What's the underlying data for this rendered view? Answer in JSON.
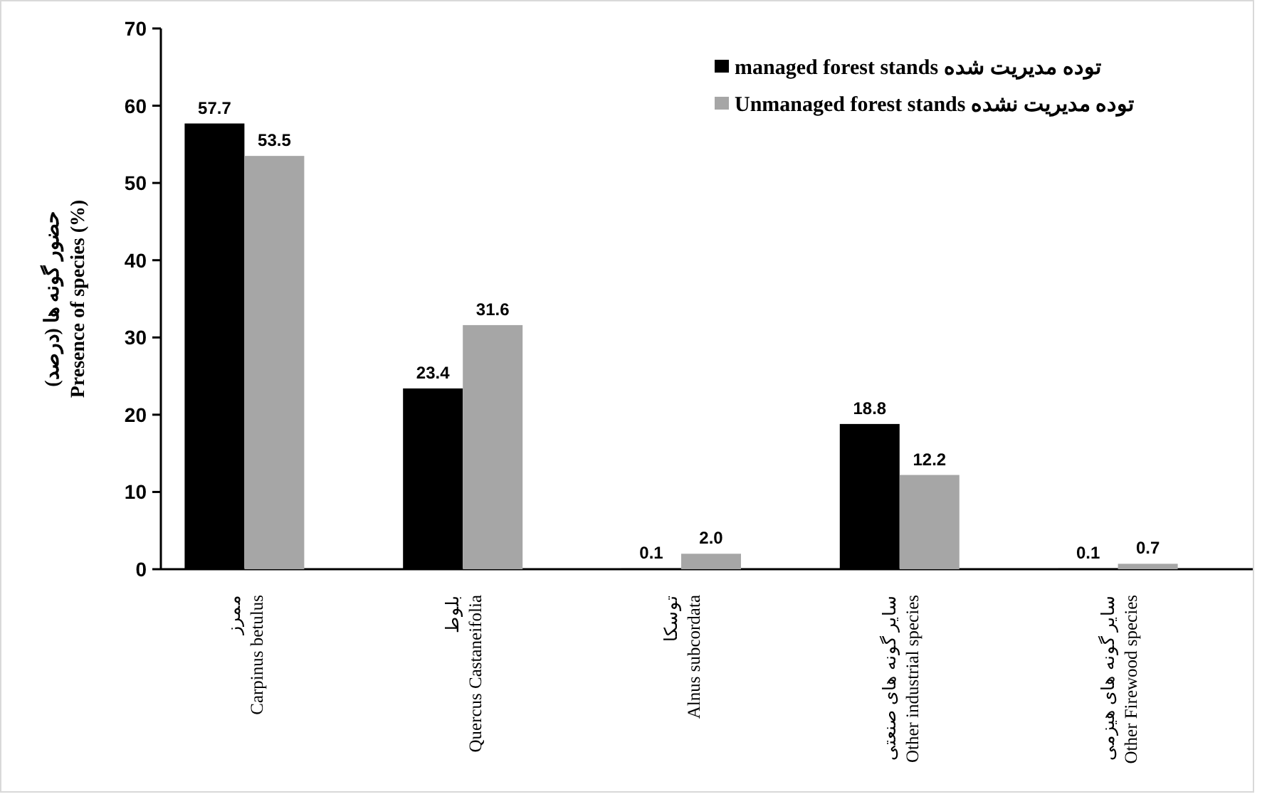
{
  "chart_data": {
    "type": "bar",
    "ylabel": "حضور گونه ها (درصد)\nPresence of species (%)",
    "categories": [
      "ممرز\nCarpinus  betulus",
      "بلوط\nQuercus Castaneifolia",
      "توسکا\nAlnus subcordata",
      "سایر گونه های صنعتی\nOther industrial  species",
      "سایر گونه های هیزمی\nOther Firewood species"
    ],
    "series": [
      {
        "name": "managed forest stands توده مدیریت شده",
        "color": "#000000",
        "values": [
          57.7,
          23.4,
          0.1,
          18.8,
          0.1
        ],
        "value_labels": [
          "57.7",
          "23.4",
          "0.1",
          "18.8",
          "0.1"
        ]
      },
      {
        "name": "Unmanaged forest stands توده مدیریت نشده",
        "color": "#a6a6a6",
        "values": [
          53.5,
          31.6,
          2.0,
          12.2,
          0.7
        ],
        "value_labels": [
          "53.5",
          "31.6",
          "2.0",
          "12.2",
          "0.7"
        ]
      }
    ],
    "ylim": [
      0,
      70
    ],
    "yticks": [
      0,
      10,
      20,
      30,
      40,
      50,
      60,
      70
    ],
    "legend": "top right"
  }
}
